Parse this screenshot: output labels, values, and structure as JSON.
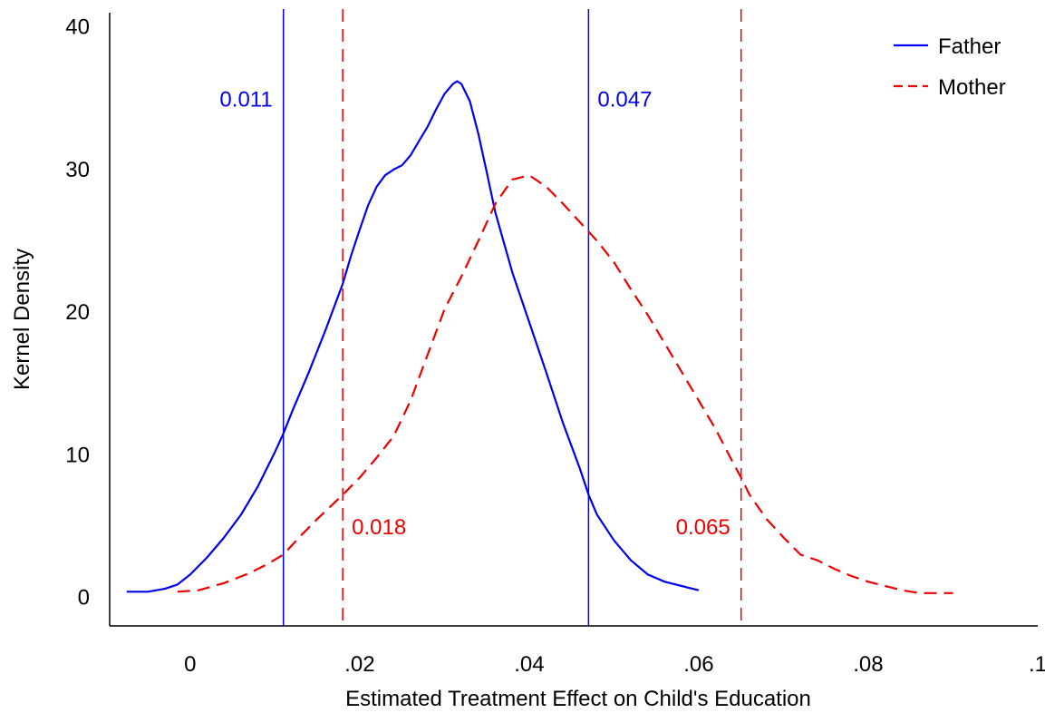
{
  "chart_data": {
    "type": "line",
    "title": "",
    "xlabel": "Estimated Treatment Effect on Child's Education",
    "ylabel": "Kernel Density",
    "xlim": [
      -0.0095,
      0.1
    ],
    "ylim": [
      -2,
      41
    ],
    "grid": false,
    "legend_position": "top-right",
    "x_ticks": [
      {
        "value": 0,
        "label": "0"
      },
      {
        "value": 0.02,
        "label": ".02"
      },
      {
        "value": 0.04,
        "label": ".04"
      },
      {
        "value": 0.06,
        "label": ".06"
      },
      {
        "value": 0.08,
        "label": ".08"
      },
      {
        "value": 0.1,
        "label": ".1"
      }
    ],
    "y_ticks": [
      {
        "value": 0,
        "label": "0"
      },
      {
        "value": 10,
        "label": "10"
      },
      {
        "value": 20,
        "label": "20"
      },
      {
        "value": 30,
        "label": "30"
      },
      {
        "value": 40,
        "label": "40"
      }
    ],
    "series": [
      {
        "name": "Father",
        "color": "#0000ee",
        "dash": "solid",
        "x": [
          -0.0075,
          -0.005,
          -0.003,
          -0.0015,
          0,
          0.002,
          0.004,
          0.006,
          0.008,
          0.01,
          0.011,
          0.012,
          0.014,
          0.016,
          0.018,
          0.019,
          0.02,
          0.021,
          0.022,
          0.023,
          0.024,
          0.025,
          0.026,
          0.027,
          0.028,
          0.029,
          0.03,
          0.031,
          0.0315,
          0.032,
          0.033,
          0.034,
          0.035,
          0.036,
          0.038,
          0.04,
          0.042,
          0.044,
          0.046,
          0.047,
          0.048,
          0.05,
          0.052,
          0.054,
          0.056,
          0.058,
          0.06
        ],
        "y": [
          0.4,
          0.4,
          0.6,
          0.9,
          1.6,
          2.8,
          4.2,
          5.8,
          7.8,
          10.2,
          11.5,
          13.0,
          15.8,
          18.8,
          22.0,
          24.0,
          25.8,
          27.5,
          28.8,
          29.6,
          30.0,
          30.3,
          31.0,
          32.0,
          33.0,
          34.2,
          35.3,
          36.0,
          36.2,
          36.0,
          34.8,
          32.5,
          29.8,
          27.0,
          22.8,
          19.3,
          15.8,
          12.2,
          9.0,
          7.2,
          5.8,
          4.0,
          2.6,
          1.6,
          1.1,
          0.8,
          0.5
        ]
      },
      {
        "name": "Mother",
        "color": "#ee0000",
        "dash": "dashed",
        "x": [
          -0.0015,
          0.001,
          0.004,
          0.007,
          0.009,
          0.011,
          0.013,
          0.015,
          0.018,
          0.02,
          0.022,
          0.024,
          0.026,
          0.028,
          0.03,
          0.032,
          0.034,
          0.036,
          0.038,
          0.04,
          0.042,
          0.044,
          0.046,
          0.048,
          0.05,
          0.052,
          0.054,
          0.056,
          0.058,
          0.06,
          0.062,
          0.064,
          0.065,
          0.066,
          0.068,
          0.07,
          0.072,
          0.074,
          0.076,
          0.078,
          0.08,
          0.082,
          0.084,
          0.086,
          0.088,
          0.09
        ],
        "y": [
          0.4,
          0.5,
          1.0,
          1.7,
          2.3,
          3.0,
          4.3,
          5.5,
          7.2,
          8.4,
          9.8,
          11.3,
          13.8,
          17.0,
          20.2,
          22.5,
          25.0,
          27.6,
          29.3,
          29.6,
          28.8,
          27.6,
          26.3,
          25.0,
          23.5,
          21.6,
          19.8,
          17.8,
          15.8,
          13.8,
          11.8,
          9.5,
          8.4,
          7.2,
          5.5,
          4.2,
          3.0,
          2.6,
          2.0,
          1.5,
          1.1,
          0.8,
          0.5,
          0.3,
          0.3,
          0.3
        ]
      }
    ],
    "reference_lines": [
      {
        "x": 0.011,
        "label": "0.011",
        "series": "Father",
        "color": "#0000ee",
        "dash": "solid",
        "label_y": 35,
        "label_side": "left"
      },
      {
        "x": 0.047,
        "label": "0.047",
        "series": "Father",
        "color": "#0000ee",
        "dash": "solid",
        "label_y": 35,
        "label_side": "right"
      },
      {
        "x": 0.018,
        "label": "0.018",
        "series": "Mother",
        "color": "#ee0000",
        "dash": "dashed",
        "label_y": 5,
        "label_side": "right"
      },
      {
        "x": 0.065,
        "label": "0.065",
        "series": "Mother",
        "color": "#ee0000",
        "dash": "dashed",
        "label_y": 5,
        "label_side": "left"
      }
    ]
  }
}
